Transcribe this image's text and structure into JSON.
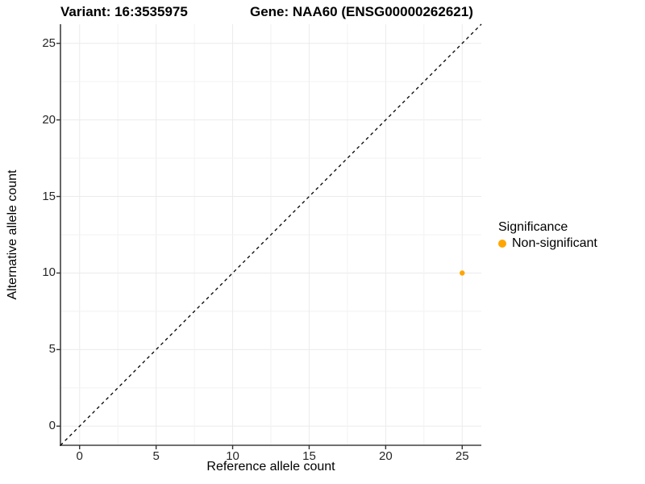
{
  "title": {
    "variant": "Variant: 16:3535975",
    "gene": "Gene: NAA60 (ENSG00000262621)"
  },
  "axes": {
    "x": {
      "label": "Reference allele count",
      "ticks": [
        "0",
        "5",
        "10",
        "15",
        "20",
        "25"
      ]
    },
    "y": {
      "label": "Alternative allele count",
      "ticks": [
        "0",
        "5",
        "10",
        "15",
        "20",
        "25"
      ]
    }
  },
  "legend": {
    "title": "Significance",
    "items": [
      {
        "label": "Non-significant",
        "color": "#FFA500"
      }
    ]
  },
  "colors": {
    "point": "#FFA500",
    "grid_major": "#EBEBEB",
    "grid_minor": "#F2F2F2",
    "axis_line": "#404040",
    "tick_mark": "#333333",
    "reference_line": "#000000",
    "background": "#FFFFFF"
  },
  "chart_data": {
    "type": "scatter",
    "title": "Variant: 16:3535975    Gene: NAA60 (ENSG00000262621)",
    "xlabel": "Reference allele count",
    "ylabel": "Alternative allele count",
    "xlim": [
      -1.25,
      26.25
    ],
    "ylim": [
      -1.25,
      26.25
    ],
    "x_ticks": [
      0,
      5,
      10,
      15,
      20,
      25
    ],
    "y_ticks": [
      0,
      5,
      10,
      15,
      20,
      25
    ],
    "minor_grid_interval": 2.5,
    "grid": true,
    "legend_position": "right",
    "legend_title": "Significance",
    "series": [
      {
        "name": "Non-significant",
        "color": "#FFA500",
        "points": [
          {
            "x": 25,
            "y": 10
          }
        ]
      }
    ],
    "reference_line": {
      "style": "dashed",
      "color": "#000000",
      "from": [
        -1.25,
        -1.25
      ],
      "to": [
        26.25,
        26.25
      ]
    }
  }
}
